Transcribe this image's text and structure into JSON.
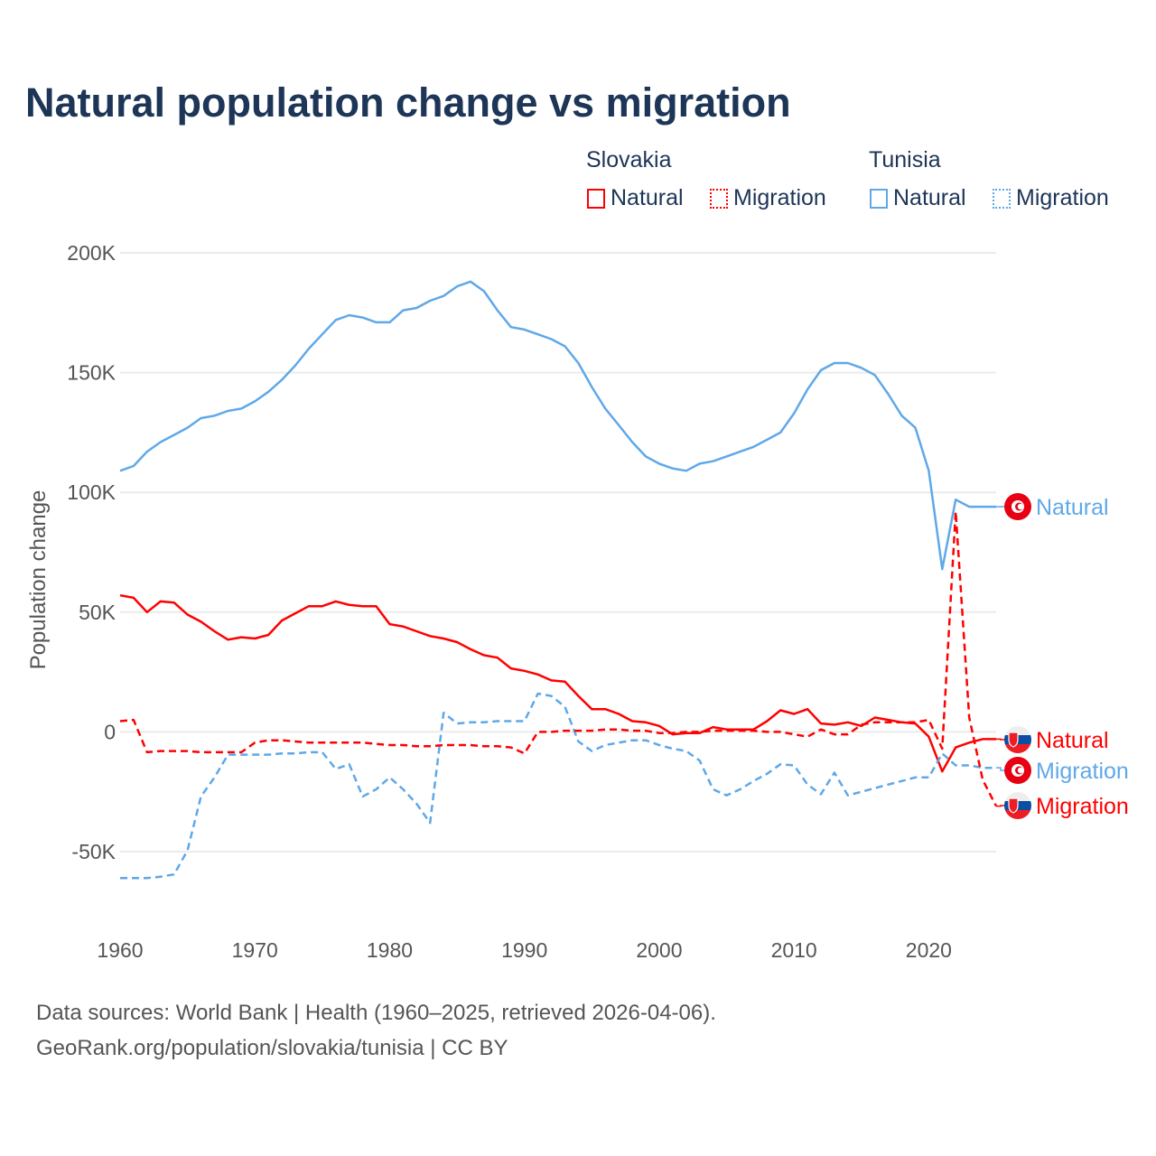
{
  "chart_data": {
    "type": "line",
    "title": "Natural population change vs migration",
    "ylabel": "Population change",
    "xlabel": "",
    "ylim": [
      -50000,
      200000
    ],
    "yticks": [
      {
        "v": 200000,
        "l": "200K"
      },
      {
        "v": 150000,
        "l": "150K"
      },
      {
        "v": 100000,
        "l": "100K"
      },
      {
        "v": 50000,
        "l": "50K"
      },
      {
        "v": 0,
        "l": "0"
      },
      {
        "v": -50000,
        "l": "-50K"
      }
    ],
    "xlim": [
      1960,
      2025
    ],
    "xticks": [
      {
        "v": 1960,
        "l": "1960"
      },
      {
        "v": 1970,
        "l": "1970"
      },
      {
        "v": 1980,
        "l": "1980"
      },
      {
        "v": 1990,
        "l": "1990"
      },
      {
        "v": 2000,
        "l": "2000"
      },
      {
        "v": 2010,
        "l": "2010"
      },
      {
        "v": 2020,
        "l": "2020"
      }
    ],
    "legend": {
      "placement": "top-right",
      "groups": [
        {
          "name": "Slovakia",
          "items": [
            "Natural",
            "Migration"
          ]
        },
        {
          "name": "Tunisia",
          "items": [
            "Natural",
            "Migration"
          ]
        }
      ]
    },
    "x_start": 1960,
    "series": [
      {
        "name": "Tunisia Natural",
        "country": "Tunisia",
        "label": "Natural",
        "color": "#5fa8e8",
        "dash": false,
        "flag": "tunisia",
        "values": [
          109000,
          111000,
          117000,
          121000,
          124000,
          127000,
          131000,
          132000,
          134000,
          135000,
          138000,
          142000,
          147000,
          153000,
          160000,
          166000,
          172000,
          174000,
          173000,
          171000,
          171000,
          176000,
          177000,
          180000,
          182000,
          186000,
          188000,
          184000,
          176000,
          169000,
          168000,
          166000,
          164000,
          161000,
          154000,
          144000,
          135000,
          128000,
          121000,
          115000,
          112000,
          110000,
          109000,
          112000,
          113000,
          115000,
          117000,
          119000,
          122000,
          125000,
          133000,
          143000,
          151000,
          154000,
          154000,
          152000,
          149000,
          141000,
          132000,
          127000,
          109000,
          68000,
          97000,
          94000,
          94000,
          94000
        ]
      },
      {
        "name": "Slovakia Natural",
        "country": "Slovakia",
        "label": "Natural",
        "color": "#ff0000",
        "dash": false,
        "flag": "slovakia",
        "values": [
          57000,
          56000,
          50000,
          54500,
          54000,
          49000,
          46000,
          42000,
          38500,
          39500,
          39000,
          40500,
          46500,
          49500,
          52500,
          52500,
          54500,
          53000,
          52500,
          52500,
          45000,
          44000,
          42000,
          40000,
          39000,
          37500,
          34500,
          32000,
          31000,
          26500,
          25500,
          24000,
          21500,
          21000,
          15000,
          9500,
          9500,
          7500,
          4500,
          4000,
          2500,
          -1000,
          -500,
          -500,
          2000,
          1000,
          1000,
          1000,
          4500,
          9000,
          7500,
          9500,
          3500,
          3000,
          4000,
          2500,
          6000,
          5000,
          4000,
          3500,
          -2000,
          -16500,
          -6500,
          -4500,
          -3000,
          -3000
        ]
      },
      {
        "name": "Tunisia Migration",
        "country": "Tunisia",
        "label": "Migration",
        "color": "#5fa8e8",
        "dash": true,
        "flag": "tunisia",
        "values": [
          -61000,
          -61000,
          -61000,
          -60500,
          -59500,
          -49500,
          -27000,
          -19000,
          -9500,
          -9500,
          -9500,
          -9500,
          -9000,
          -9000,
          -8500,
          -8500,
          -15500,
          -13500,
          -27000,
          -24000,
          -19000,
          -24000,
          -30000,
          -38000,
          8000,
          3500,
          4000,
          4000,
          4500,
          4500,
          4500,
          16000,
          15000,
          10500,
          -4000,
          -8000,
          -5500,
          -4500,
          -3500,
          -3500,
          -5500,
          -7000,
          -8000,
          -12000,
          -24000,
          -26500,
          -24000,
          -20500,
          -17500,
          -13500,
          -14000,
          -22000,
          -26000,
          -17000,
          -26500,
          -25000,
          -23500,
          -22000,
          -20500,
          -19000,
          -19000,
          -9000,
          -14000,
          -14000,
          -15000,
          -15000
        ]
      },
      {
        "name": "Slovakia Migration",
        "country": "Slovakia",
        "label": "Migration",
        "color": "#ff0000",
        "dash": true,
        "flag": "slovakia",
        "values": [
          4500,
          5000,
          -8500,
          -8000,
          -8000,
          -8000,
          -8500,
          -8500,
          -8500,
          -8500,
          -4500,
          -3500,
          -3500,
          -4000,
          -4500,
          -4500,
          -4500,
          -4500,
          -4500,
          -5000,
          -5500,
          -5500,
          -6000,
          -6000,
          -5500,
          -5500,
          -5500,
          -6000,
          -6000,
          -6500,
          -9000,
          0,
          0,
          500,
          500,
          500,
          1000,
          1000,
          500,
          500,
          -500,
          -500,
          0,
          0,
          500,
          500,
          500,
          500,
          0,
          0,
          -1000,
          -2000,
          1000,
          -1000,
          -1000,
          3000,
          4000,
          4000,
          4000,
          4000,
          5000,
          -7000,
          92000,
          6000,
          -20000,
          -31000
        ]
      }
    ]
  },
  "legend_labels": {
    "slovakia": "Slovakia",
    "tunisia": "Tunisia",
    "natural": "Natural",
    "migration": "Migration"
  },
  "source": {
    "line1": "Data sources: World Bank | Health (1960–2025, retrieved 2026-04-06).",
    "line2": "GeoRank.org/population/slovakia/tunisia | CC BY"
  }
}
